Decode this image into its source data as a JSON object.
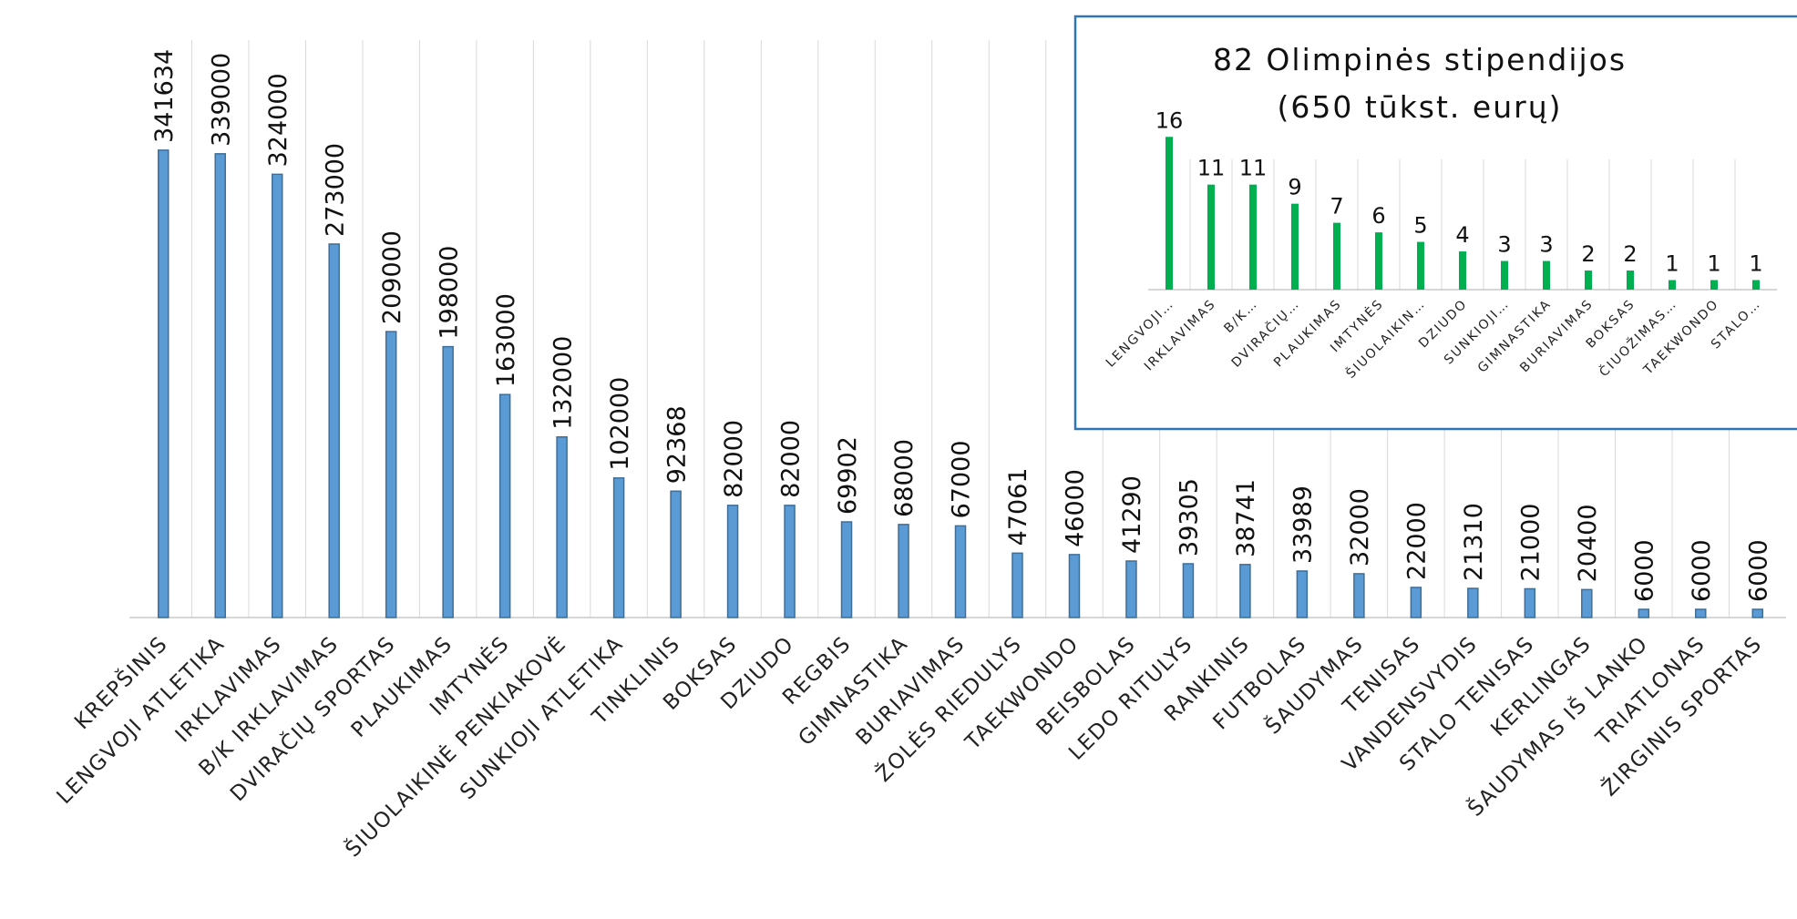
{
  "chart_data": [
    {
      "type": "bar",
      "categories": [
        "KREPŠINIS",
        "LENGVOJI ATLETIKA",
        "IRKLAVIMAS",
        "B/K IRKLAVIMAS",
        "DVIRAČIŲ SPORTAS",
        "PLAUKIMAS",
        "IMTYNĖS",
        "ŠIUOLAIKINĖ PENKIAKOVĖ",
        "SUNKIOJI ATLETIKA",
        "TINKLINIS",
        "BOKSAS",
        "DZIUDO",
        "REGBIS",
        "GIMNASTIKA",
        "BURIAVIMAS",
        "ŽOLĖS RIEDULYS",
        "TAEKWONDO",
        "BEISBOLAS",
        "LEDO RITULYS",
        "RANKINIS",
        "FUTBOLAS",
        "ŠAUDYMAS",
        "TENISAS",
        "VANDENSVYDIS",
        "STALO TENISAS",
        "KERLINGAS",
        "ŠAUDYMAS IŠ LANKO",
        "TRIATLONAS",
        "ŽIRGINIS SPORTAS"
      ],
      "values": [
        341634,
        339000,
        324000,
        273000,
        209000,
        198000,
        163000,
        132000,
        102000,
        92368,
        82000,
        82000,
        69902,
        68000,
        67000,
        47061,
        46000,
        41290,
        39305,
        38741,
        33989,
        32000,
        22000,
        21310,
        21000,
        20400,
        6000,
        6000,
        6000
      ],
      "title": "",
      "xlabel": "",
      "ylabel": "",
      "ylim": [
        0,
        360000
      ],
      "grid": "vertical",
      "bar_color": "#5b9bd5"
    },
    {
      "type": "bar",
      "title": "82 Olimpinės stipendijos",
      "subtitle": "(650 tūkst. eurų)",
      "categories": [
        "LENGVOJI…",
        "IRKLAVIMAS",
        "B/K…",
        "DVIRAČIŲ…",
        "PLAUKIMAS",
        "IMTYNĖS",
        "ŠIUOLAIKIN…",
        "DZIUDO",
        "SUNKIOJI…",
        "GIMNASTIKA",
        "BURIAVIMAS",
        "BOKSAS",
        "ČIUOŽIMAS…",
        "TAEKWONDO",
        "STALO…"
      ],
      "values": [
        16,
        11,
        11,
        9,
        7,
        6,
        5,
        4,
        3,
        3,
        2,
        2,
        1,
        1,
        1
      ],
      "xlabel": "",
      "ylabel": "",
      "ylim": [
        0,
        18
      ],
      "grid": "vertical",
      "bar_color": "#00b050",
      "frame_color": "#2e75b6"
    }
  ]
}
